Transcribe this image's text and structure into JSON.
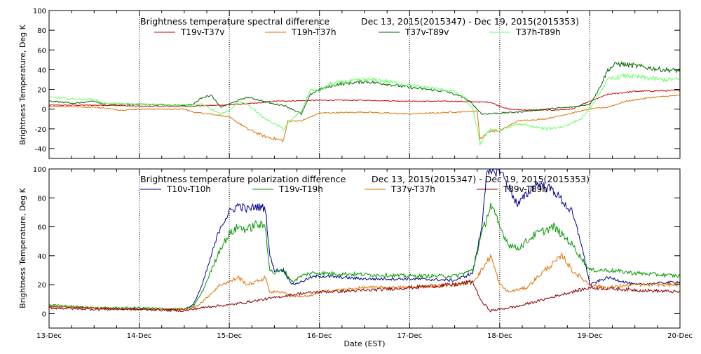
{
  "xaxis": {
    "label": "Date (EST)",
    "ticks": [
      "13-Dec",
      "14-Dec",
      "15-Dec",
      "16-Dec",
      "17-Dec",
      "18-Dec",
      "19-Dec",
      "20-Dec"
    ]
  },
  "chart_data": [
    {
      "type": "line",
      "title": "Brightness temperature spectral difference",
      "date_range": "Dec 13, 2015(2015347) - Dec 19, 2015(2015353)",
      "ylabel": "Brightness Temperature, Deg K",
      "xlim": [
        "2015-12-13",
        "2015-12-20"
      ],
      "ylim": [
        -50,
        100
      ],
      "yticks": [
        -40,
        -20,
        0,
        20,
        40,
        60,
        80,
        100
      ],
      "grid": "vertical dotted lines at each day",
      "legend_placement": "top, below title",
      "series": [
        {
          "name": "T19v-T37v",
          "color": "#cc0000",
          "points": [
            [
              0,
              4
            ],
            [
              0.6,
              4
            ],
            [
              1.0,
              3
            ],
            [
              1.5,
              3
            ],
            [
              1.9,
              4
            ],
            [
              2.3,
              6
            ],
            [
              2.5,
              8
            ],
            [
              3.0,
              9
            ],
            [
              3.5,
              9
            ],
            [
              4.0,
              8
            ],
            [
              4.5,
              8
            ],
            [
              4.9,
              7
            ],
            [
              5.0,
              3
            ],
            [
              5.1,
              0
            ],
            [
              5.3,
              -1
            ],
            [
              5.6,
              -1
            ],
            [
              5.8,
              0
            ],
            [
              5.95,
              6
            ],
            [
              6.2,
              15
            ],
            [
              6.5,
              18
            ],
            [
              7.0,
              19
            ]
          ]
        },
        {
          "name": "T19h-T37h",
          "color": "#e07000",
          "points": [
            [
              0,
              3
            ],
            [
              0.5,
              2
            ],
            [
              0.8,
              -1
            ],
            [
              1.0,
              0
            ],
            [
              1.5,
              0
            ],
            [
              1.6,
              -3
            ],
            [
              1.8,
              -5
            ],
            [
              2.0,
              -8
            ],
            [
              2.2,
              -20
            ],
            [
              2.4,
              -28
            ],
            [
              2.6,
              -32
            ],
            [
              2.65,
              -12
            ],
            [
              2.8,
              -12
            ],
            [
              3.0,
              -4
            ],
            [
              3.5,
              -3
            ],
            [
              4.0,
              -5
            ],
            [
              4.5,
              -3
            ],
            [
              4.75,
              -2
            ],
            [
              4.78,
              -30
            ],
            [
              4.9,
              -22
            ],
            [
              5.0,
              -22
            ],
            [
              5.2,
              -12
            ],
            [
              5.5,
              -10
            ],
            [
              5.8,
              -4
            ],
            [
              6.0,
              0
            ],
            [
              6.2,
              2
            ],
            [
              6.4,
              8
            ],
            [
              6.7,
              12
            ],
            [
              7.0,
              14
            ]
          ]
        },
        {
          "name": "T37v-T89v",
          "color": "#006400",
          "points": [
            [
              0,
              8
            ],
            [
              0.3,
              6
            ],
            [
              0.5,
              8
            ],
            [
              0.6,
              5
            ],
            [
              1.0,
              5
            ],
            [
              1.5,
              4
            ],
            [
              1.6,
              5
            ],
            [
              1.7,
              12
            ],
            [
              1.8,
              14
            ],
            [
              1.9,
              2
            ],
            [
              2.0,
              5
            ],
            [
              2.1,
              9
            ],
            [
              2.2,
              12
            ],
            [
              2.3,
              10
            ],
            [
              2.5,
              5
            ],
            [
              2.6,
              4
            ],
            [
              2.7,
              0
            ],
            [
              2.8,
              -5
            ],
            [
              2.9,
              15
            ],
            [
              3.0,
              20
            ],
            [
              3.2,
              25
            ],
            [
              3.5,
              28
            ],
            [
              3.7,
              26
            ],
            [
              4.0,
              22
            ],
            [
              4.2,
              20
            ],
            [
              4.4,
              18
            ],
            [
              4.6,
              12
            ],
            [
              4.7,
              5
            ],
            [
              4.8,
              -5
            ],
            [
              5.0,
              -4
            ],
            [
              5.2,
              -3
            ],
            [
              5.5,
              0
            ],
            [
              5.8,
              2
            ],
            [
              6.0,
              5
            ],
            [
              6.1,
              20
            ],
            [
              6.2,
              40
            ],
            [
              6.3,
              46
            ],
            [
              6.5,
              44
            ],
            [
              6.8,
              40
            ],
            [
              7.0,
              39
            ]
          ]
        },
        {
          "name": "T37h-T89h",
          "color": "#66ff66",
          "points": [
            [
              0,
              12
            ],
            [
              0.3,
              10
            ],
            [
              0.5,
              10
            ],
            [
              0.6,
              6
            ],
            [
              1.0,
              5
            ],
            [
              1.5,
              4
            ],
            [
              1.7,
              5
            ],
            [
              1.8,
              0
            ],
            [
              1.9,
              -5
            ],
            [
              2.0,
              -2
            ],
            [
              2.1,
              8
            ],
            [
              2.2,
              5
            ],
            [
              2.4,
              -10
            ],
            [
              2.5,
              -15
            ],
            [
              2.6,
              -20
            ],
            [
              2.7,
              -10
            ],
            [
              2.8,
              -2
            ],
            [
              2.9,
              20
            ],
            [
              3.0,
              18
            ],
            [
              3.1,
              25
            ],
            [
              3.3,
              28
            ],
            [
              3.5,
              30
            ],
            [
              3.7,
              29
            ],
            [
              4.0,
              24
            ],
            [
              4.2,
              22
            ],
            [
              4.5,
              18
            ],
            [
              4.6,
              12
            ],
            [
              4.7,
              0
            ],
            [
              4.75,
              -20
            ],
            [
              4.78,
              -35
            ],
            [
              4.9,
              -20
            ],
            [
              5.0,
              -22
            ],
            [
              5.2,
              -15
            ],
            [
              5.5,
              -20
            ],
            [
              5.7,
              -18
            ],
            [
              5.9,
              -10
            ],
            [
              6.0,
              0
            ],
            [
              6.2,
              30
            ],
            [
              6.4,
              34
            ],
            [
              6.6,
              32
            ],
            [
              6.8,
              30
            ],
            [
              7.0,
              30
            ]
          ]
        }
      ]
    },
    {
      "type": "line",
      "title": "Brightness temperature polarization difference",
      "date_range": "Dec 13, 2015(2015347) - Dec 19, 2015(2015353)",
      "ylabel": "Brightness Temperature, Deg K",
      "xlim": [
        "2015-12-13",
        "2015-12-20"
      ],
      "ylim": [
        -10,
        100
      ],
      "yticks": [
        0,
        20,
        40,
        60,
        80,
        100
      ],
      "grid": "vertical dotted lines at each day",
      "legend_placement": "top, below title",
      "series": [
        {
          "name": "T10v-T10h",
          "color": "#00008b",
          "points": [
            [
              0,
              5
            ],
            [
              0.5,
              4
            ],
            [
              1.0,
              3
            ],
            [
              1.5,
              3
            ],
            [
              1.6,
              6
            ],
            [
              1.7,
              20
            ],
            [
              1.8,
              40
            ],
            [
              1.9,
              60
            ],
            [
              2.0,
              70
            ],
            [
              2.1,
              75
            ],
            [
              2.2,
              72
            ],
            [
              2.3,
              74
            ],
            [
              2.4,
              73
            ],
            [
              2.45,
              40
            ],
            [
              2.5,
              30
            ],
            [
              2.6,
              30
            ],
            [
              2.7,
              20
            ],
            [
              2.8,
              22
            ],
            [
              2.9,
              25
            ],
            [
              3.0,
              26
            ],
            [
              3.5,
              24
            ],
            [
              4.0,
              24
            ],
            [
              4.5,
              23
            ],
            [
              4.7,
              28
            ],
            [
              4.8,
              60
            ],
            [
              4.85,
              95
            ],
            [
              5.0,
              100
            ],
            [
              5.2,
              75
            ],
            [
              5.4,
              90
            ],
            [
              5.6,
              85
            ],
            [
              5.8,
              70
            ],
            [
              5.9,
              50
            ],
            [
              6.0,
              20
            ],
            [
              6.2,
              25
            ],
            [
              6.5,
              20
            ],
            [
              7.0,
              22
            ]
          ]
        },
        {
          "name": "T19v-T19h",
          "color": "#009900",
          "points": [
            [
              0,
              6
            ],
            [
              0.5,
              4
            ],
            [
              1.0,
              4
            ],
            [
              1.5,
              3
            ],
            [
              1.6,
              5
            ],
            [
              1.7,
              15
            ],
            [
              1.8,
              30
            ],
            [
              1.9,
              45
            ],
            [
              2.0,
              55
            ],
            [
              2.1,
              60
            ],
            [
              2.2,
              58
            ],
            [
              2.3,
              62
            ],
            [
              2.4,
              60
            ],
            [
              2.45,
              30
            ],
            [
              2.5,
              28
            ],
            [
              2.6,
              30
            ],
            [
              2.7,
              22
            ],
            [
              2.8,
              26
            ],
            [
              2.9,
              28
            ],
            [
              3.0,
              28
            ],
            [
              3.5,
              27
            ],
            [
              4.0,
              26
            ],
            [
              4.5,
              26
            ],
            [
              4.7,
              30
            ],
            [
              4.8,
              55
            ],
            [
              4.9,
              75
            ],
            [
              5.0,
              60
            ],
            [
              5.1,
              48
            ],
            [
              5.2,
              45
            ],
            [
              5.4,
              55
            ],
            [
              5.6,
              60
            ],
            [
              5.8,
              48
            ],
            [
              6.0,
              30
            ],
            [
              6.2,
              30
            ],
            [
              6.5,
              28
            ],
            [
              7.0,
              26
            ]
          ]
        },
        {
          "name": "T37v-T37h",
          "color": "#e07000",
          "points": [
            [
              0,
              5
            ],
            [
              0.5,
              4
            ],
            [
              1.0,
              3
            ],
            [
              1.5,
              3
            ],
            [
              1.6,
              4
            ],
            [
              1.7,
              8
            ],
            [
              1.8,
              14
            ],
            [
              1.9,
              20
            ],
            [
              2.0,
              22
            ],
            [
              2.1,
              25
            ],
            [
              2.2,
              20
            ],
            [
              2.3,
              22
            ],
            [
              2.4,
              25
            ],
            [
              2.45,
              15
            ],
            [
              2.6,
              15
            ],
            [
              2.7,
              12
            ],
            [
              2.9,
              12
            ],
            [
              3.0,
              15
            ],
            [
              3.5,
              18
            ],
            [
              4.0,
              18
            ],
            [
              4.5,
              20
            ],
            [
              4.7,
              22
            ],
            [
              4.8,
              30
            ],
            [
              4.9,
              40
            ],
            [
              5.0,
              20
            ],
            [
              5.1,
              15
            ],
            [
              5.3,
              18
            ],
            [
              5.5,
              30
            ],
            [
              5.7,
              40
            ],
            [
              5.8,
              30
            ],
            [
              6.0,
              20
            ],
            [
              6.2,
              18
            ],
            [
              6.5,
              20
            ],
            [
              7.0,
              20
            ]
          ]
        },
        {
          "name": "T89v-T89h",
          "color": "#8b0000",
          "points": [
            [
              0,
              4
            ],
            [
              0.5,
              3
            ],
            [
              1.0,
              3
            ],
            [
              1.5,
              2
            ],
            [
              1.6,
              3
            ],
            [
              1.8,
              5
            ],
            [
              2.0,
              6
            ],
            [
              2.2,
              8
            ],
            [
              2.4,
              10
            ],
            [
              2.6,
              12
            ],
            [
              2.8,
              14
            ],
            [
              3.0,
              15
            ],
            [
              3.5,
              16
            ],
            [
              4.0,
              18
            ],
            [
              4.5,
              20
            ],
            [
              4.7,
              22
            ],
            [
              4.8,
              8
            ],
            [
              4.9,
              2
            ],
            [
              5.0,
              3
            ],
            [
              5.2,
              5
            ],
            [
              5.5,
              10
            ],
            [
              5.8,
              15
            ],
            [
              6.0,
              18
            ],
            [
              6.3,
              17
            ],
            [
              6.6,
              16
            ],
            [
              7.0,
              15
            ]
          ]
        }
      ]
    }
  ]
}
